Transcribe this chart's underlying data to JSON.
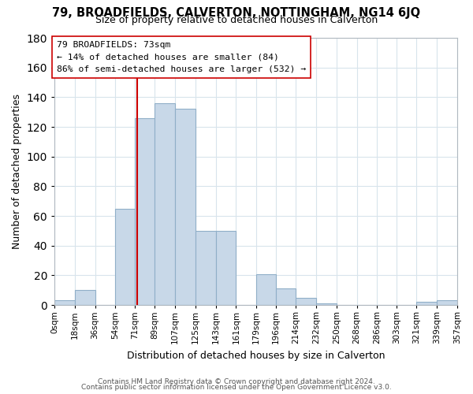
{
  "title": "79, BROADFIELDS, CALVERTON, NOTTINGHAM, NG14 6JQ",
  "subtitle": "Size of property relative to detached houses in Calverton",
  "xlabel": "Distribution of detached houses by size in Calverton",
  "ylabel": "Number of detached properties",
  "bin_edges": [
    0,
    18,
    36,
    54,
    71,
    89,
    107,
    125,
    143,
    161,
    179,
    196,
    214,
    232,
    250,
    268,
    286,
    303,
    321,
    339,
    357
  ],
  "bin_labels": [
    "0sqm",
    "18sqm",
    "36sqm",
    "54sqm",
    "71sqm",
    "89sqm",
    "107sqm",
    "125sqm",
    "143sqm",
    "161sqm",
    "179sqm",
    "196sqm",
    "214sqm",
    "232sqm",
    "250sqm",
    "268sqm",
    "286sqm",
    "303sqm",
    "321sqm",
    "339sqm",
    "357sqm"
  ],
  "counts": [
    3,
    10,
    0,
    65,
    126,
    136,
    132,
    50,
    50,
    0,
    21,
    11,
    5,
    1,
    0,
    0,
    0,
    0,
    2,
    3
  ],
  "bar_color": "#c8d8e8",
  "bar_edge_color": "#90afc8",
  "vline_x": 73,
  "vline_color": "#cc0000",
  "annotation_title": "79 BROADFIELDS: 73sqm",
  "annotation_line1": "← 14% of detached houses are smaller (84)",
  "annotation_line2": "86% of semi-detached houses are larger (532) →",
  "annotation_box_facecolor": "white",
  "annotation_box_edgecolor": "#cc0000",
  "ylim": [
    0,
    180
  ],
  "yticks": [
    0,
    20,
    40,
    60,
    80,
    100,
    120,
    140,
    160,
    180
  ],
  "grid_color": "#d8e4ec",
  "footer1": "Contains HM Land Registry data © Crown copyright and database right 2024.",
  "footer2": "Contains public sector information licensed under the Open Government Licence v3.0."
}
